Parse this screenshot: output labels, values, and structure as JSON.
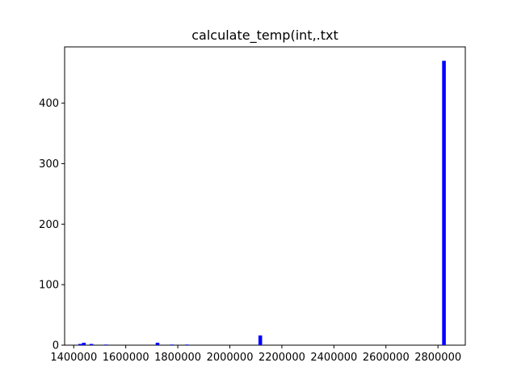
{
  "chart_data": {
    "type": "bar",
    "title": "calculate_temp(int,.txt",
    "xlabel": "",
    "ylabel": "",
    "xlim": [
      1365000,
      2905000
    ],
    "ylim": [
      0,
      493
    ],
    "bin_width": 14100,
    "bar_color": "#0000ff",
    "grid": false,
    "x_ticks": [
      1400000,
      1600000,
      1800000,
      2000000,
      2200000,
      2400000,
      2600000,
      2800000
    ],
    "x_tick_labels": [
      "1400000",
      "1600000",
      "1800000",
      "2000000",
      "2200000",
      "2400000",
      "2600000",
      "2800000"
    ],
    "y_ticks": [
      0,
      100,
      200,
      300,
      400
    ],
    "y_tick_labels": [
      "0",
      "100",
      "200",
      "300",
      "400"
    ],
    "bins": [
      {
        "x": 1425000,
        "value": 2
      },
      {
        "x": 1439000,
        "value": 4
      },
      {
        "x": 1468000,
        "value": 2
      },
      {
        "x": 1524000,
        "value": 1
      },
      {
        "x": 1722000,
        "value": 4
      },
      {
        "x": 1778000,
        "value": 1
      },
      {
        "x": 1835000,
        "value": 1
      },
      {
        "x": 2117000,
        "value": 16
      },
      {
        "x": 2823000,
        "value": 470
      }
    ]
  }
}
